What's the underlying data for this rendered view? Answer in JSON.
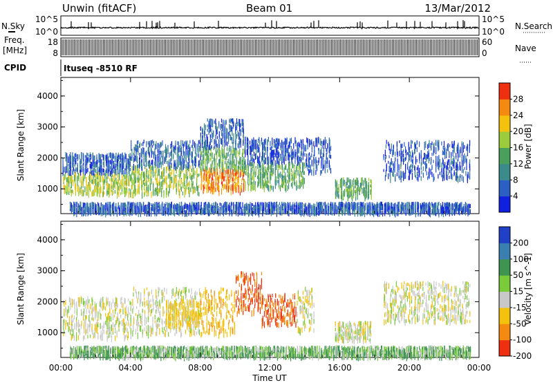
{
  "header": {
    "station": "Unwin (fitACF)",
    "beam": "Beam 01",
    "date": "13/Mar/2012"
  },
  "strip_panels": {
    "nsky_label": "N.Sky",
    "nsearch_label": "N.Search",
    "nsky_ticks": [
      "10^5",
      "10^0"
    ],
    "freq_label_1": "Freq.",
    "freq_label_2": "[MHz]",
    "freq_ticks": [
      "18",
      "8"
    ],
    "nave_label": "Nave",
    "nave_ticks": [
      "60",
      "0"
    ],
    "cpid_label": "CPID",
    "cpid_value": "Ituseq -8510 RF"
  },
  "chart_data": [
    {
      "type": "heatmap",
      "name": "power",
      "xlabel": "",
      "ylabel": "Slant Range [km]",
      "ylim": [
        200,
        4600
      ],
      "xlim": [
        0,
        24
      ],
      "y_ticks": [
        "1000",
        "2000",
        "3000",
        "4000"
      ],
      "colorbar": {
        "label": "Power [dB]",
        "ticks": [
          "4",
          "8",
          "12",
          "16",
          "20",
          "24",
          "28"
        ],
        "range": [
          0,
          32
        ],
        "colors": [
          "#1020e0",
          "#2c5fc4",
          "#3d8a8a",
          "#4aa05a",
          "#9ccc3c",
          "#f2c20c",
          "#f58a10",
          "#ee3010"
        ]
      },
      "scatter_regions": [
        {
          "t_start": 0.1,
          "t_end": 4.0,
          "r_low": 800,
          "r_high": 1500,
          "value": 18
        },
        {
          "t_start": 0.1,
          "t_end": 4.0,
          "r_low": 1500,
          "r_high": 2100,
          "value": 6
        },
        {
          "t_start": 4.0,
          "t_end": 8.0,
          "r_low": 800,
          "r_high": 1700,
          "value": 17
        },
        {
          "t_start": 4.0,
          "t_end": 8.0,
          "r_low": 1700,
          "r_high": 2500,
          "value": 7
        },
        {
          "t_start": 8.0,
          "t_end": 10.5,
          "r_low": 900,
          "r_high": 1600,
          "value": 26
        },
        {
          "t_start": 8.0,
          "t_end": 10.5,
          "r_low": 1600,
          "r_high": 2300,
          "value": 15
        },
        {
          "t_start": 8.0,
          "t_end": 10.5,
          "r_low": 2300,
          "r_high": 3200,
          "value": 6
        },
        {
          "t_start": 10.5,
          "t_end": 14.0,
          "r_low": 1000,
          "r_high": 1800,
          "value": 14
        },
        {
          "t_start": 10.5,
          "t_end": 14.0,
          "r_low": 1800,
          "r_high": 2600,
          "value": 5
        },
        {
          "t_start": 14.0,
          "t_end": 15.5,
          "r_low": 1500,
          "r_high": 2600,
          "value": 5
        },
        {
          "t_start": 15.7,
          "t_end": 17.8,
          "r_low": 700,
          "r_high": 1300,
          "value": 14
        },
        {
          "t_start": 18.5,
          "t_end": 23.5,
          "r_low": 1300,
          "r_high": 2500,
          "value": 5
        },
        {
          "t_start": 0.5,
          "t_end": 23.5,
          "r_low": 200,
          "r_high": 500,
          "value": 6
        }
      ]
    },
    {
      "type": "heatmap",
      "name": "velocity",
      "xlabel": "Time UT",
      "ylabel": "Slant Range [km]",
      "ylim": [
        200,
        4600
      ],
      "xlim": [
        0,
        24
      ],
      "x_ticks": [
        "00:00",
        "04:00",
        "08:00",
        "12:00",
        "16:00",
        "20:00",
        "00:00"
      ],
      "y_ticks": [
        "1000",
        "2000",
        "3000",
        "4000"
      ],
      "colorbar": {
        "label": "Velocity [m s^-1]",
        "ticks": [
          "200",
          "100",
          "50",
          "15",
          "-15",
          "-50",
          "-100",
          "-200"
        ],
        "range": [
          -250,
          250
        ],
        "colors": [
          "#2040c8",
          "#3a7fb0",
          "#3f9450",
          "#7acb3a",
          "#c8c8c8",
          "#f2c20c",
          "#f58a10",
          "#ee3010"
        ]
      },
      "scatter_regions": [
        {
          "t_start": 0.1,
          "t_end": 4.0,
          "r_low": 800,
          "r_high": 2100,
          "value": 0
        },
        {
          "t_start": 4.0,
          "t_end": 8.0,
          "r_low": 900,
          "r_high": 2400,
          "value": 0
        },
        {
          "t_start": 6.0,
          "t_end": 8.0,
          "r_low": 1200,
          "r_high": 2000,
          "value": -40
        },
        {
          "t_start": 8.0,
          "t_end": 10.0,
          "r_low": 900,
          "r_high": 2400,
          "value": -60
        },
        {
          "t_start": 10.0,
          "t_end": 11.5,
          "r_low": 1600,
          "r_high": 2900,
          "value": -150
        },
        {
          "t_start": 11.5,
          "t_end": 13.5,
          "r_low": 1200,
          "r_high": 2200,
          "value": -150
        },
        {
          "t_start": 13.5,
          "t_end": 14.5,
          "r_low": 1000,
          "r_high": 2400,
          "value": 0
        },
        {
          "t_start": 15.7,
          "t_end": 17.8,
          "r_low": 700,
          "r_high": 1300,
          "value": 0
        },
        {
          "t_start": 18.5,
          "t_end": 23.5,
          "r_low": 1300,
          "r_high": 2600,
          "value": 0
        },
        {
          "t_start": 0.5,
          "t_end": 23.5,
          "r_low": 200,
          "r_high": 500,
          "value": 30
        }
      ]
    }
  ]
}
